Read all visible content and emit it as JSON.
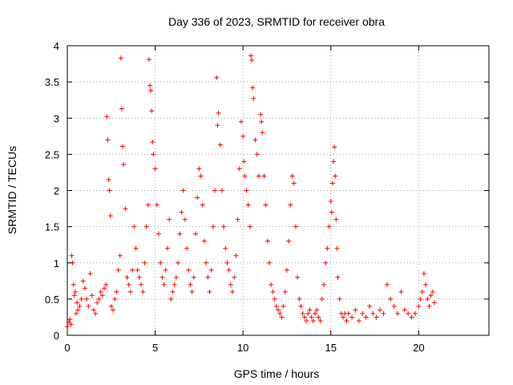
{
  "chart_data": {
    "type": "scatter",
    "title": "Day 336 of 2023, SRMTID for receiver obra",
    "xlabel": "GPS time / hours",
    "ylabel": "SRMTID / TECUs",
    "xlim": [
      0,
      24
    ],
    "ylim": [
      0,
      4
    ],
    "xticks": [
      0,
      5,
      10,
      15,
      20
    ],
    "yticks": [
      0,
      0.5,
      1,
      1.5,
      2,
      2.5,
      3,
      3.5,
      4
    ],
    "xtick_labels": [
      "0",
      "5",
      "10",
      "15",
      "20"
    ],
    "ytick_labels": [
      "0",
      "0.5",
      "1",
      "1.5",
      "2",
      "2.5",
      "3",
      "3.5",
      "4"
    ],
    "grid": true,
    "marker": "+",
    "color": "#ff0000",
    "series": [
      {
        "name": "SRMTID",
        "x": [
          0.0,
          0.1,
          0.15,
          0.2,
          0.25,
          0.3,
          0.35,
          0.4,
          0.45,
          0.5,
          0.55,
          0.6,
          0.7,
          0.8,
          0.9,
          1.0,
          1.1,
          1.2,
          1.3,
          1.4,
          1.5,
          1.6,
          1.7,
          1.8,
          1.9,
          2.0,
          2.1,
          2.2,
          2.25,
          2.3,
          2.35,
          2.4,
          2.45,
          2.5,
          2.6,
          2.7,
          2.8,
          2.9,
          3.0,
          3.05,
          3.1,
          3.15,
          3.2,
          3.3,
          3.4,
          3.5,
          3.6,
          3.7,
          3.8,
          3.9,
          4.0,
          4.1,
          4.2,
          4.3,
          4.4,
          4.5,
          4.6,
          4.65,
          4.7,
          4.75,
          4.8,
          4.85,
          4.9,
          5.0,
          5.1,
          5.2,
          5.3,
          5.4,
          5.5,
          5.6,
          5.7,
          5.8,
          5.9,
          6.0,
          6.1,
          6.2,
          6.3,
          6.4,
          6.5,
          6.6,
          6.7,
          6.8,
          6.9,
          7.0,
          7.1,
          7.2,
          7.3,
          7.4,
          7.5,
          7.6,
          7.7,
          7.8,
          7.9,
          8.0,
          8.1,
          8.2,
          8.3,
          8.4,
          8.5,
          8.55,
          8.6,
          8.7,
          8.8,
          8.9,
          9.0,
          9.1,
          9.2,
          9.3,
          9.4,
          9.5,
          9.6,
          9.7,
          9.8,
          9.9,
          10.0,
          10.05,
          10.1,
          10.2,
          10.3,
          10.4,
          10.45,
          10.5,
          10.55,
          10.6,
          10.7,
          10.8,
          10.9,
          11.0,
          11.05,
          11.1,
          11.2,
          11.3,
          11.4,
          11.5,
          11.6,
          11.7,
          11.8,
          11.9,
          12.0,
          12.1,
          12.2,
          12.3,
          12.4,
          12.5,
          12.6,
          12.7,
          12.8,
          12.9,
          13.0,
          13.1,
          13.2,
          13.3,
          13.4,
          13.5,
          13.6,
          13.7,
          13.8,
          13.9,
          14.0,
          14.1,
          14.2,
          14.3,
          14.4,
          14.5,
          14.6,
          14.7,
          14.8,
          14.9,
          15.0,
          15.05,
          15.1,
          15.15,
          15.2,
          15.25,
          15.3,
          15.35,
          15.4,
          15.5,
          15.6,
          15.7,
          15.8,
          15.9,
          16.0,
          16.2,
          16.4,
          16.6,
          16.8,
          17.0,
          17.2,
          17.4,
          17.6,
          17.8,
          18.0,
          18.2,
          18.4,
          18.6,
          18.8,
          19.0,
          19.2,
          19.4,
          19.6,
          19.8,
          20.0,
          20.1,
          20.2,
          20.3,
          20.4,
          20.5,
          20.6,
          20.7,
          20.8,
          20.9
        ],
        "y": [
          0.12,
          0.18,
          0.22,
          0.15,
          1.1,
          1.0,
          0.7,
          0.55,
          0.6,
          0.3,
          0.45,
          0.35,
          0.4,
          0.5,
          0.75,
          0.65,
          0.5,
          0.4,
          0.85,
          0.55,
          0.35,
          0.3,
          0.45,
          0.5,
          0.6,
          0.55,
          0.65,
          0.7,
          3.02,
          2.7,
          2.15,
          2.0,
          1.65,
          0.4,
          0.35,
          0.5,
          0.6,
          0.9,
          1.1,
          3.83,
          3.13,
          2.61,
          2.36,
          1.75,
          0.8,
          0.7,
          0.6,
          0.9,
          1.5,
          1.2,
          0.9,
          0.8,
          0.7,
          0.6,
          1.0,
          1.5,
          1.8,
          3.81,
          3.45,
          3.38,
          3.1,
          2.67,
          2.5,
          2.3,
          1.8,
          1.4,
          1.0,
          0.8,
          0.7,
          0.9,
          1.2,
          1.6,
          0.5,
          0.6,
          0.7,
          0.8,
          1.0,
          1.4,
          1.7,
          2.0,
          1.6,
          1.2,
          0.9,
          0.7,
          0.6,
          0.8,
          1.4,
          1.9,
          2.3,
          2.2,
          1.8,
          1.3,
          1.0,
          0.8,
          0.6,
          0.9,
          1.5,
          2.0,
          3.56,
          2.9,
          3.07,
          2.63,
          2.0,
          1.5,
          1.2,
          1.0,
          0.9,
          0.7,
          0.6,
          0.8,
          1.1,
          1.6,
          2.3,
          2.95,
          2.75,
          2.4,
          2.2,
          2.0,
          1.8,
          1.5,
          3.86,
          3.8,
          3.42,
          3.27,
          2.7,
          2.5,
          2.2,
          3.05,
          2.95,
          2.8,
          2.2,
          1.8,
          1.3,
          1.0,
          0.7,
          0.6,
          0.5,
          0.4,
          0.35,
          0.3,
          0.25,
          0.4,
          0.6,
          0.9,
          1.3,
          1.8,
          2.2,
          2.1,
          1.5,
          0.8,
          0.5,
          0.4,
          0.3,
          0.25,
          0.2,
          0.3,
          0.35,
          0.25,
          0.2,
          0.3,
          0.35,
          0.25,
          0.2,
          0.5,
          0.7,
          1.0,
          1.2,
          1.5,
          1.85,
          1.7,
          2.1,
          2.4,
          2.6,
          2.2,
          1.6,
          1.2,
          0.8,
          0.5,
          0.3,
          0.25,
          0.3,
          0.2,
          0.3,
          0.25,
          0.35,
          0.2,
          0.3,
          0.25,
          0.4,
          0.3,
          0.25,
          0.35,
          0.3,
          0.7,
          0.5,
          0.4,
          0.3,
          0.6,
          0.35,
          0.3,
          0.25,
          0.3,
          0.4,
          0.5,
          0.6,
          0.85,
          0.7,
          0.5,
          0.4,
          0.55,
          0.6,
          0.45
        ]
      }
    ]
  }
}
